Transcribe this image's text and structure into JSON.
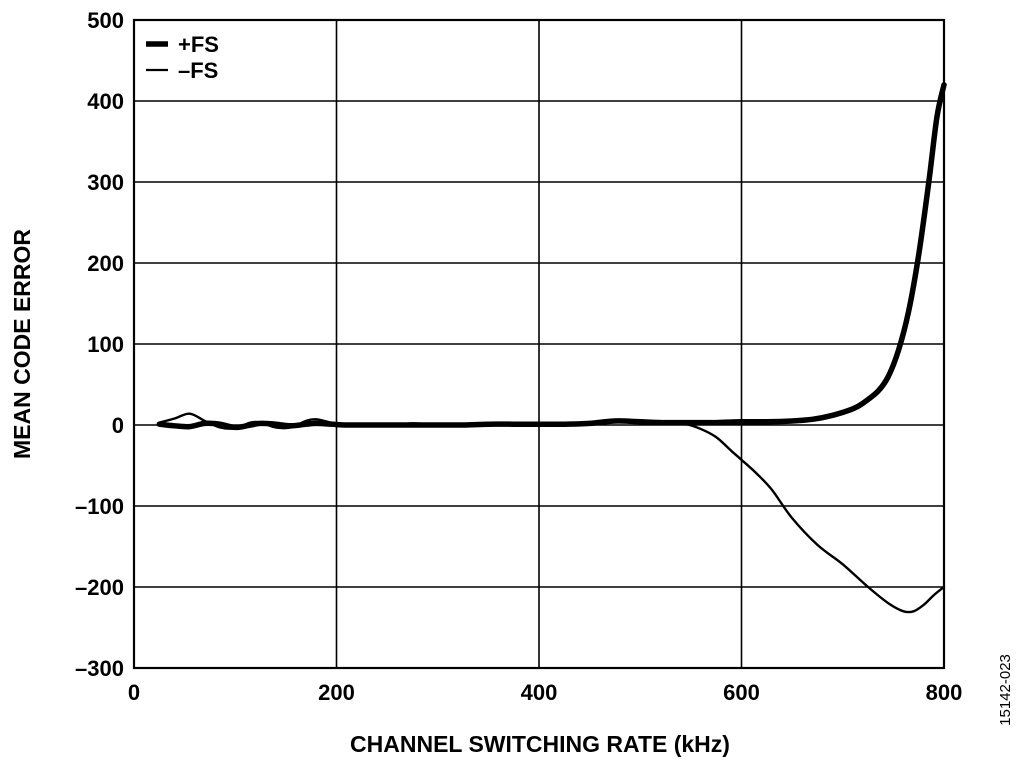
{
  "chart_data": {
    "type": "line",
    "title": "",
    "xlabel": "CHANNEL SWITCHING RATE  (kHz)",
    "ylabel": "MEAN CODE ERROR",
    "xlim": [
      0,
      800
    ],
    "ylim": [
      -300,
      500
    ],
    "x_ticks": [
      0,
      200,
      400,
      600,
      800
    ],
    "y_ticks": [
      -300,
      -200,
      -100,
      0,
      100,
      200,
      300,
      400,
      500
    ],
    "x_tick_labels": [
      "0",
      "200",
      "400",
      "600",
      "800"
    ],
    "y_tick_labels": [
      "–300",
      "–200",
      "–100",
      "0",
      "100",
      "200",
      "300",
      "400",
      "500"
    ],
    "grid": true,
    "legend_position": "top-left",
    "series": [
      {
        "name": "+FS",
        "line_style": "thick",
        "color": "#000000",
        "x": [
          25,
          40,
          55,
          70,
          85,
          100,
          115,
          125,
          140,
          155,
          170,
          180,
          195,
          210,
          230,
          250,
          275,
          300,
          325,
          350,
          375,
          400,
          425,
          450,
          475,
          500,
          525,
          550,
          575,
          600,
          625,
          650,
          670,
          690,
          710,
          720,
          735,
          745,
          755,
          765,
          775,
          785,
          793,
          800
        ],
        "y": [
          1,
          -1,
          -2,
          2,
          1,
          -3,
          0,
          2,
          1,
          -1,
          1,
          2,
          1,
          0,
          0,
          0,
          0,
          0,
          0,
          1,
          1,
          1,
          1,
          2,
          5,
          4,
          3,
          3,
          3,
          4,
          4,
          5,
          7,
          12,
          20,
          27,
          42,
          60,
          92,
          140,
          210,
          300,
          380,
          420
        ]
      },
      {
        "name": "–FS",
        "line_style": "thin",
        "color": "#000000",
        "x": [
          25,
          40,
          55,
          70,
          85,
          100,
          115,
          125,
          140,
          155,
          170,
          180,
          195,
          210,
          230,
          250,
          275,
          300,
          325,
          350,
          375,
          400,
          425,
          450,
          475,
          500,
          525,
          545,
          560,
          575,
          590,
          600,
          615,
          630,
          650,
          675,
          700,
          725,
          745,
          760,
          770,
          780,
          790,
          800
        ],
        "y": [
          3,
          8,
          14,
          5,
          -3,
          -4,
          3,
          3,
          -3,
          -3,
          5,
          7,
          3,
          1,
          0,
          -1,
          2,
          0,
          0,
          2,
          1,
          1,
          1,
          3,
          6,
          3,
          2,
          1,
          -5,
          -15,
          -32,
          -43,
          -60,
          -80,
          -115,
          -148,
          -172,
          -200,
          -220,
          -230,
          -230,
          -222,
          -210,
          -200
        ]
      }
    ]
  },
  "figure_id": "15142-023"
}
